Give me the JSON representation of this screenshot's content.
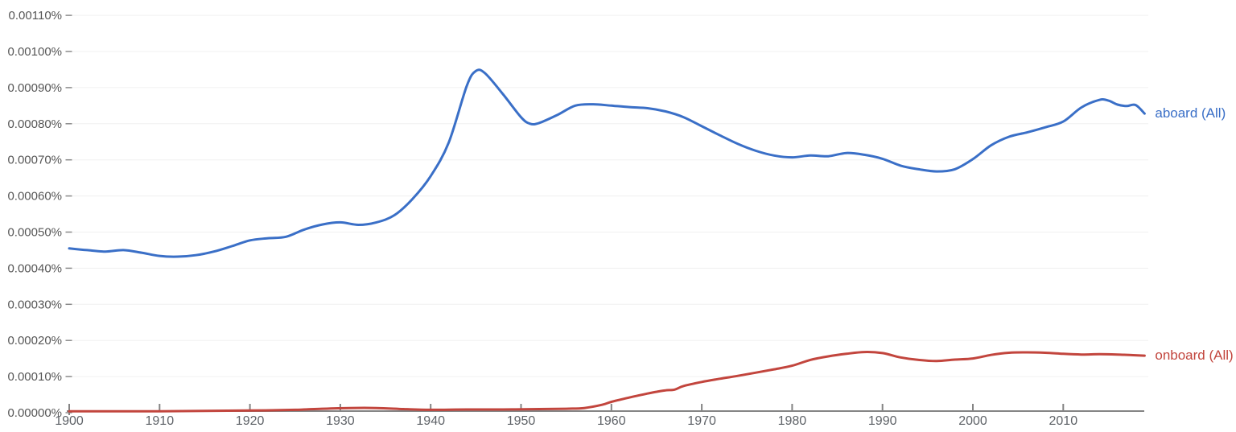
{
  "chart_data": {
    "type": "line",
    "title": "",
    "grid": "horizontal",
    "legend_position": "inline-end-of-line",
    "x_axis": {
      "range": [
        1900,
        2019
      ],
      "tick_labels": [
        "1900",
        "1910",
        "1920",
        "1930",
        "1940",
        "1950",
        "1960",
        "1970",
        "1980",
        "1990",
        "2000",
        "2010"
      ],
      "tick_values": [
        1900,
        1910,
        1920,
        1930,
        1940,
        1950,
        1960,
        1970,
        1980,
        1990,
        2000,
        2010
      ]
    },
    "y_axis": {
      "unit": "percent",
      "range": [
        0,
        0.0011
      ],
      "tick_step": 0.0001,
      "tick_labels": [
        "0.00110%",
        "0.00100%",
        "0.00090%",
        "0.00080%",
        "0.00070%",
        "0.00060%",
        "0.00050%",
        "0.00040%",
        "0.00030%",
        "0.00020%",
        "0.00010%",
        "0.00000%"
      ]
    },
    "series": [
      {
        "name": "aboard (All)",
        "color": "#3a6fc7",
        "points": [
          [
            1900,
            0.000455
          ],
          [
            1902,
            0.00045
          ],
          [
            1904,
            0.000446
          ],
          [
            1906,
            0.00045
          ],
          [
            1908,
            0.000443
          ],
          [
            1910,
            0.000434
          ],
          [
            1912,
            0.000432
          ],
          [
            1914,
            0.000436
          ],
          [
            1916,
            0.000446
          ],
          [
            1918,
            0.000461
          ],
          [
            1920,
            0.000477
          ],
          [
            1922,
            0.000483
          ],
          [
            1924,
            0.000487
          ],
          [
            1926,
            0.000507
          ],
          [
            1928,
            0.000521
          ],
          [
            1930,
            0.000527
          ],
          [
            1932,
            0.00052
          ],
          [
            1934,
            0.000527
          ],
          [
            1936,
            0.000547
          ],
          [
            1938,
            0.000592
          ],
          [
            1940,
            0.000655
          ],
          [
            1942,
            0.000748
          ],
          [
            1944,
            0.000905
          ],
          [
            1945,
            0.000946
          ],
          [
            1946,
            0.00094
          ],
          [
            1948,
            0.000882
          ],
          [
            1950,
            0.000818
          ],
          [
            1951,
            0.0008
          ],
          [
            1952,
            0.000802
          ],
          [
            1954,
            0.000824
          ],
          [
            1956,
            0.00085
          ],
          [
            1958,
            0.000854
          ],
          [
            1960,
            0.00085
          ],
          [
            1962,
            0.000846
          ],
          [
            1964,
            0.000843
          ],
          [
            1966,
            0.000834
          ],
          [
            1968,
            0.000818
          ],
          [
            1970,
            0.000793
          ],
          [
            1972,
            0.000768
          ],
          [
            1974,
            0.000744
          ],
          [
            1976,
            0.000725
          ],
          [
            1978,
            0.000712
          ],
          [
            1980,
            0.000707
          ],
          [
            1982,
            0.000712
          ],
          [
            1984,
            0.00071
          ],
          [
            1986,
            0.000719
          ],
          [
            1988,
            0.000714
          ],
          [
            1990,
            0.000703
          ],
          [
            1992,
            0.000684
          ],
          [
            1994,
            0.000674
          ],
          [
            1996,
            0.000668
          ],
          [
            1998,
            0.000674
          ],
          [
            2000,
            0.000702
          ],
          [
            2002,
            0.00074
          ],
          [
            2004,
            0.000764
          ],
          [
            2006,
            0.000776
          ],
          [
            2008,
            0.00079
          ],
          [
            2010,
            0.000806
          ],
          [
            2012,
            0.000845
          ],
          [
            2014,
            0.000866
          ],
          [
            2015,
            0.000864
          ],
          [
            2016,
            0.000853
          ],
          [
            2017,
            0.000849
          ],
          [
            2018,
            0.000852
          ],
          [
            2019,
            0.000828
          ]
        ]
      },
      {
        "name": "onboard (All)",
        "color": "#c2453d",
        "points": [
          [
            1900,
            4e-06
          ],
          [
            1905,
            4e-06
          ],
          [
            1910,
            4e-06
          ],
          [
            1915,
            5e-06
          ],
          [
            1920,
            6e-06
          ],
          [
            1925,
            8e-06
          ],
          [
            1928,
            1.1e-05
          ],
          [
            1931,
            1.3e-05
          ],
          [
            1934,
            1.3e-05
          ],
          [
            1937,
            1e-05
          ],
          [
            1940,
            8e-06
          ],
          [
            1944,
            9e-06
          ],
          [
            1948,
            9e-06
          ],
          [
            1952,
            1e-05
          ],
          [
            1955,
            1.1e-05
          ],
          [
            1957,
            1.3e-05
          ],
          [
            1959,
            2.2e-05
          ],
          [
            1960,
            3e-05
          ],
          [
            1962,
            4.2e-05
          ],
          [
            1964,
            5.3e-05
          ],
          [
            1965,
            5.8e-05
          ],
          [
            1966,
            6.2e-05
          ],
          [
            1967,
            6.4e-05
          ],
          [
            1968,
            7.4e-05
          ],
          [
            1970,
            8.5e-05
          ],
          [
            1972,
            9.4e-05
          ],
          [
            1974,
            0.000102
          ],
          [
            1976,
            0.000111
          ],
          [
            1978,
            0.00012
          ],
          [
            1980,
            0.00013
          ],
          [
            1982,
            0.000146
          ],
          [
            1984,
            0.000156
          ],
          [
            1986,
            0.000163
          ],
          [
            1988,
            0.000168
          ],
          [
            1990,
            0.000165
          ],
          [
            1992,
            0.000153
          ],
          [
            1994,
            0.000146
          ],
          [
            1996,
            0.000143
          ],
          [
            1998,
            0.000147
          ],
          [
            2000,
            0.00015
          ],
          [
            2002,
            0.00016
          ],
          [
            2004,
            0.000166
          ],
          [
            2006,
            0.000167
          ],
          [
            2008,
            0.000166
          ],
          [
            2010,
            0.000163
          ],
          [
            2012,
            0.000161
          ],
          [
            2014,
            0.000162
          ],
          [
            2016,
            0.000161
          ],
          [
            2018,
            0.000159
          ],
          [
            2019,
            0.000158
          ]
        ]
      }
    ]
  },
  "colors": {
    "background": "#ffffff",
    "gridline": "#f0f0f0",
    "axis_line": "#848484",
    "tick_mark": "#8a8a8a",
    "x_label_text": "#5f6368",
    "y_label_text": "#565656"
  }
}
